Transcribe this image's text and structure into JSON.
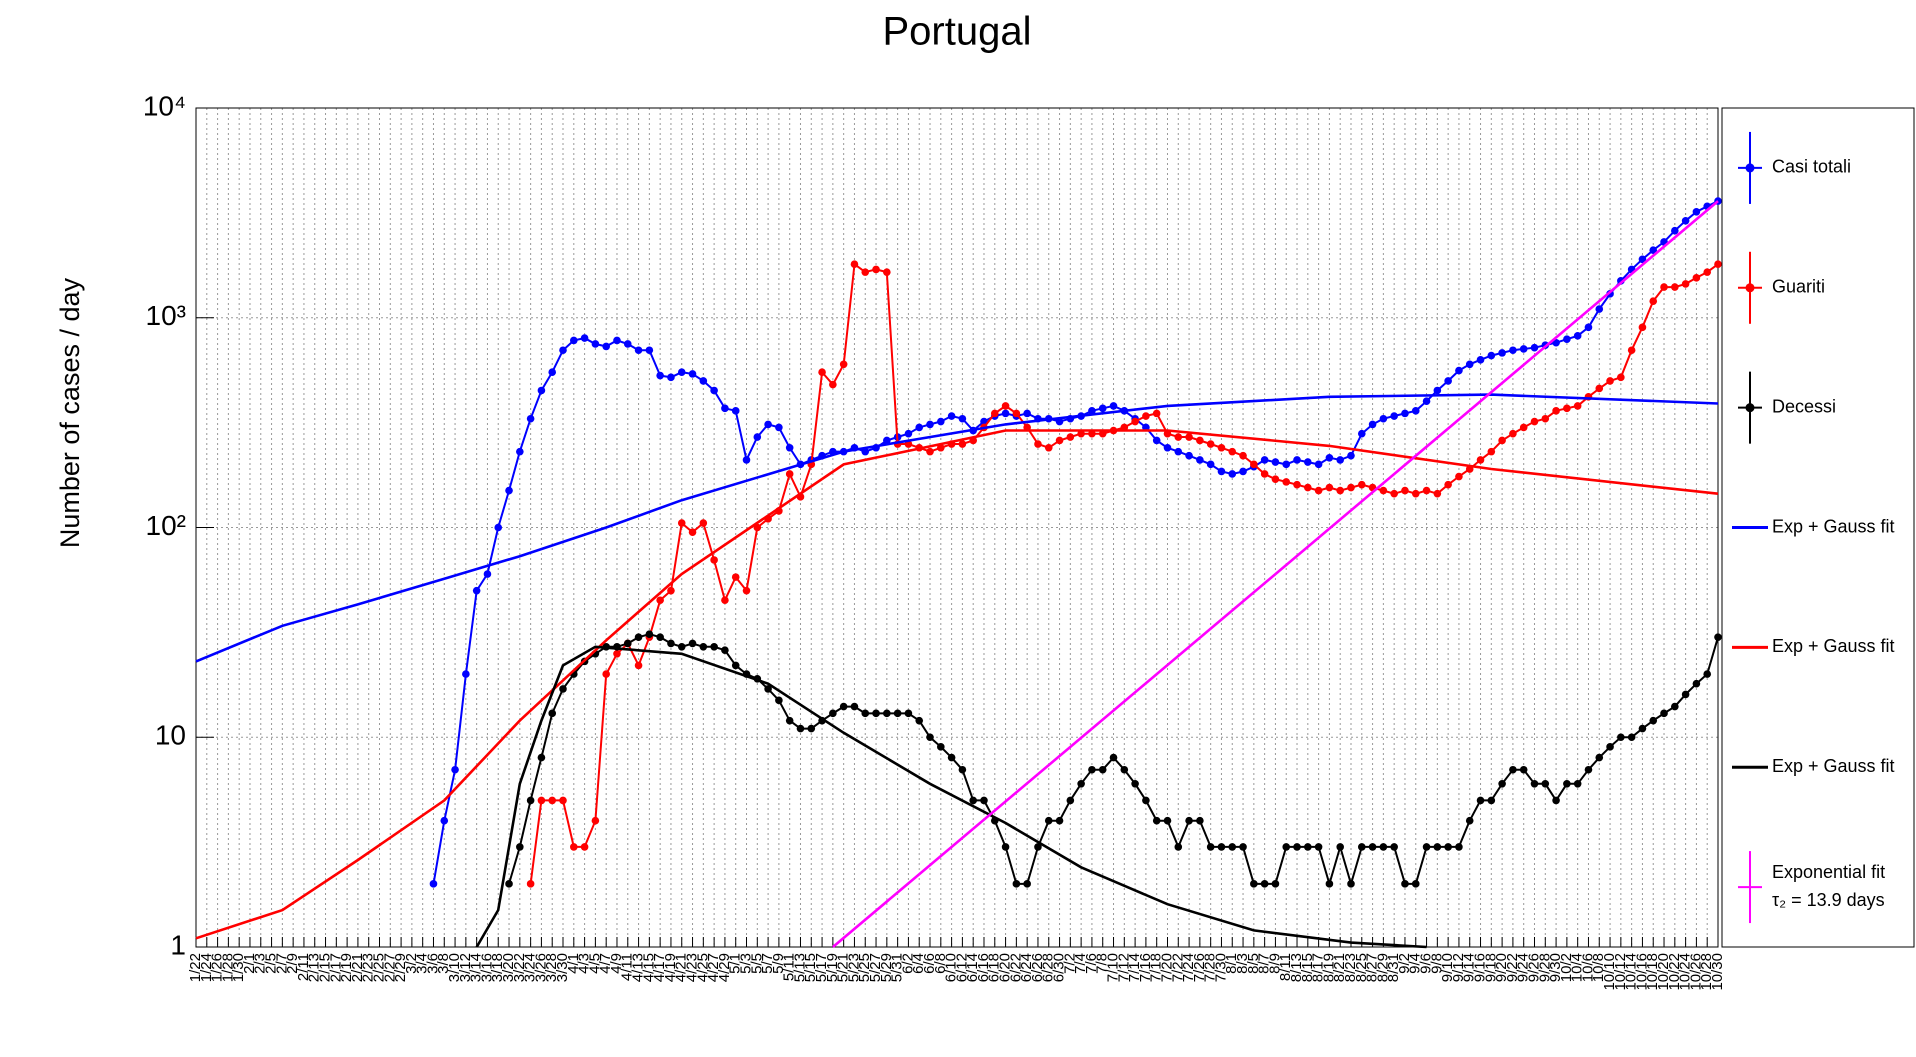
{
  "chart_data": {
    "type": "line",
    "title": "Portugal",
    "y_label": "Number of cases / day",
    "log_y": true,
    "grid": true,
    "legend": "right",
    "ylim": [
      1,
      10000
    ],
    "yticks": [
      1,
      10,
      {
        "value": 100,
        "label": "10²"
      },
      {
        "value": 1000,
        "label": "10³"
      },
      {
        "value": 10000,
        "label": "10⁴"
      }
    ],
    "x": [
      "1/22",
      "1/24",
      "1/26",
      "1/28",
      "1/30",
      "2/1",
      "2/3",
      "2/5",
      "2/7",
      "2/9",
      "2/11",
      "2/13",
      "2/15",
      "2/17",
      "2/19",
      "2/21",
      "2/23",
      "2/25",
      "2/27",
      "2/29",
      "3/2",
      "3/4",
      "3/6",
      "3/8",
      "3/10",
      "3/12",
      "3/14",
      "3/16",
      "3/18",
      "3/20",
      "3/22",
      "3/24",
      "3/26",
      "3/28",
      "3/30",
      "4/1",
      "4/3",
      "4/5",
      "4/7",
      "4/9",
      "4/11",
      "4/13",
      "4/15",
      "4/17",
      "4/19",
      "4/21",
      "4/23",
      "4/25",
      "4/27",
      "4/29",
      "5/1",
      "5/3",
      "5/5",
      "5/7",
      "5/9",
      "5/11",
      "5/13",
      "5/15",
      "5/17",
      "5/19",
      "5/21",
      "5/23",
      "5/25",
      "5/27",
      "5/29",
      "5/31",
      "6/2",
      "6/4",
      "6/6",
      "6/8",
      "6/10",
      "6/12",
      "6/14",
      "6/16",
      "6/18",
      "6/20",
      "6/22",
      "6/24",
      "6/26",
      "6/28",
      "6/30",
      "7/2",
      "7/4",
      "7/6",
      "7/8",
      "7/10",
      "7/12",
      "7/14",
      "7/16",
      "7/18",
      "7/20",
      "7/22",
      "7/24",
      "7/26",
      "7/28",
      "7/30",
      "8/1",
      "8/3",
      "8/5",
      "8/7",
      "8/9",
      "8/11",
      "8/13",
      "8/15",
      "8/17",
      "8/19",
      "8/21",
      "8/23",
      "8/25",
      "8/27",
      "8/29",
      "8/31",
      "9/2",
      "9/4",
      "9/6",
      "9/8",
      "9/10",
      "9/12",
      "9/14",
      "9/16",
      "9/18",
      "9/20",
      "9/22",
      "9/24",
      "9/26",
      "9/28",
      "9/30",
      "10/2",
      "10/4",
      "10/6",
      "10/8",
      "10/10",
      "10/12",
      "10/14",
      "10/16",
      "10/18",
      "10/20",
      "10/22",
      "10/24",
      "10/26",
      "10/28",
      "10/30"
    ],
    "series": [
      {
        "name": "Casi totali",
        "color": "#0000ff",
        "markers": true,
        "values": [
          null,
          null,
          null,
          null,
          null,
          null,
          null,
          null,
          null,
          null,
          null,
          null,
          null,
          null,
          null,
          null,
          null,
          null,
          null,
          null,
          null,
          null,
          2,
          4,
          7,
          20,
          50,
          60,
          100,
          150,
          230,
          330,
          450,
          550,
          700,
          780,
          800,
          750,
          730,
          780,
          750,
          700,
          700,
          530,
          520,
          550,
          540,
          500,
          450,
          370,
          360,
          210,
          270,
          310,
          300,
          240,
          200,
          210,
          220,
          230,
          230,
          240,
          230,
          240,
          260,
          270,
          280,
          300,
          310,
          320,
          340,
          330,
          290,
          320,
          340,
          350,
          340,
          350,
          330,
          330,
          320,
          330,
          340,
          360,
          370,
          380,
          360,
          330,
          300,
          260,
          240,
          230,
          220,
          210,
          200,
          185,
          180,
          185,
          195,
          210,
          205,
          200,
          210,
          205,
          200,
          215,
          210,
          220,
          280,
          310,
          330,
          340,
          350,
          360,
          400,
          450,
          500,
          560,
          600,
          630,
          660,
          680,
          700,
          710,
          720,
          740,
          760,
          790,
          820,
          900,
          1100,
          1300,
          1500,
          1700,
          1900,
          2100,
          2300,
          2600,
          2900,
          3200,
          3400,
          3600
        ]
      },
      {
        "name": "Guariti",
        "color": "#ff0000",
        "markers": true,
        "values": [
          null,
          null,
          null,
          null,
          null,
          null,
          null,
          null,
          null,
          null,
          null,
          null,
          null,
          null,
          null,
          null,
          null,
          null,
          null,
          null,
          null,
          null,
          null,
          null,
          null,
          null,
          null,
          null,
          null,
          null,
          null,
          2,
          5,
          5,
          5,
          3,
          3,
          4,
          20,
          25,
          28,
          22,
          30,
          45,
          50,
          105,
          95,
          105,
          70,
          45,
          58,
          50,
          100,
          110,
          120,
          180,
          140,
          200,
          550,
          480,
          600,
          1800,
          1650,
          1700,
          1650,
          250,
          250,
          240,
          230,
          240,
          250,
          250,
          260,
          300,
          350,
          380,
          350,
          300,
          250,
          240,
          260,
          270,
          280,
          280,
          280,
          290,
          300,
          320,
          340,
          350,
          280,
          270,
          270,
          260,
          250,
          240,
          230,
          220,
          200,
          180,
          170,
          165,
          160,
          155,
          150,
          155,
          150,
          155,
          160,
          155,
          150,
          145,
          150,
          145,
          150,
          145,
          160,
          175,
          190,
          210,
          230,
          260,
          280,
          300,
          320,
          330,
          360,
          370,
          380,
          420,
          460,
          500,
          520,
          700,
          900,
          1200,
          1400,
          1400,
          1450,
          1550,
          1650,
          1800
        ]
      },
      {
        "name": "Decessi",
        "color": "#000000",
        "markers": true,
        "values": [
          null,
          null,
          null,
          null,
          null,
          null,
          null,
          null,
          null,
          null,
          null,
          null,
          null,
          null,
          null,
          null,
          null,
          null,
          null,
          null,
          null,
          null,
          null,
          null,
          null,
          null,
          null,
          null,
          null,
          2,
          3,
          5,
          8,
          13,
          17,
          20,
          23,
          25,
          27,
          27,
          28,
          30,
          31,
          30,
          28,
          27,
          28,
          27,
          27,
          26,
          22,
          20,
          19,
          17,
          15,
          12,
          11,
          11,
          12,
          13,
          14,
          14,
          13,
          13,
          13,
          13,
          13,
          12,
          10,
          9,
          8,
          7,
          5,
          5,
          4,
          3,
          2,
          2,
          3,
          4,
          4,
          5,
          6,
          7,
          7,
          8,
          7,
          6,
          5,
          4,
          4,
          3,
          4,
          4,
          3,
          3,
          3,
          3,
          2,
          2,
          2,
          3,
          3,
          3,
          3,
          2,
          3,
          2,
          3,
          3,
          3,
          3,
          2,
          2,
          3,
          3,
          3,
          3,
          4,
          5,
          5,
          6,
          7,
          7,
          6,
          6,
          5,
          6,
          6,
          7,
          8,
          9,
          10,
          10,
          11,
          12,
          13,
          14,
          16,
          18,
          20,
          30
        ]
      },
      {
        "name": "Exp + Gauss fit",
        "color": "#0000ff",
        "markers": false,
        "x": [
          "1/22",
          "2/7",
          "2/21",
          "3/8",
          "3/22",
          "4/7",
          "4/21",
          "5/21",
          "6/20",
          "7/20",
          "8/19",
          "9/18",
          "10/30"
        ],
        "values": [
          23,
          34,
          43,
          57,
          73,
          100,
          135,
          230,
          310,
          380,
          420,
          430,
          390
        ]
      },
      {
        "name": "Exp + Gauss fit",
        "color": "#ff0000",
        "markers": false,
        "x": [
          "1/22",
          "2/7",
          "2/21",
          "3/8",
          "3/22",
          "4/7",
          "4/21",
          "5/21",
          "6/20",
          "7/20",
          "8/19",
          "9/18",
          "10/30"
        ],
        "values": [
          1.1,
          1.5,
          2.6,
          5,
          12,
          29,
          60,
          200,
          290,
          290,
          245,
          190,
          145
        ]
      },
      {
        "name": "Exp + Gauss fit",
        "color": "#000000",
        "markers": false,
        "x": [
          "3/14",
          "3/18",
          "3/22",
          "3/26",
          "3/30",
          "4/5",
          "4/21",
          "5/7",
          "5/21",
          "6/6",
          "6/20",
          "7/4",
          "7/20",
          "8/5",
          "8/23",
          "9/6"
        ],
        "values": [
          1,
          1.5,
          6,
          12,
          22,
          27,
          25,
          18,
          10.5,
          6,
          3.9,
          2.4,
          1.6,
          1.2,
          1.05,
          1
        ]
      },
      {
        "name": "Exponential fit",
        "legend_detail": "τ₂ = 13.9 days",
        "color": "#ff00ff",
        "markers": false,
        "x": [
          "5/19",
          "10/30"
        ],
        "values": [
          1,
          3600
        ]
      }
    ]
  }
}
